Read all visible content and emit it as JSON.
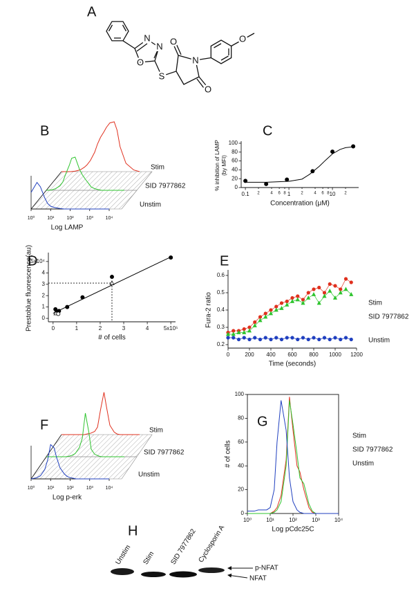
{
  "structure": {
    "panel": "A",
    "atoms": [
      "N",
      "N",
      "O",
      "S",
      "O",
      "N",
      "O",
      "O"
    ]
  },
  "chart_data": [
    {
      "panel": "B",
      "type": "ridge",
      "xlabel": "Log LAMP",
      "xscale": "log",
      "xlim": [
        1,
        10000
      ],
      "xticks": [
        {
          "value": 1,
          "label": "10⁰"
        },
        {
          "value": 10,
          "label": "10¹"
        },
        {
          "value": 100,
          "label": "10²"
        },
        {
          "value": 1000,
          "label": "10³"
        },
        {
          "value": 10000,
          "label": "10⁴"
        }
      ],
      "ylim": [
        0,
        100
      ],
      "x": [
        1,
        2,
        3,
        5,
        7,
        10,
        15,
        20,
        30,
        50,
        70,
        100,
        150,
        200,
        300,
        500,
        700,
        1000,
        2000,
        5000,
        10000
      ],
      "series": [
        {
          "name": "Stim",
          "color": "#e0301e",
          "values": [
            0,
            0,
            0,
            1,
            2,
            4,
            8,
            12,
            20,
            35,
            50,
            62,
            72,
            80,
            88,
            90,
            75,
            45,
            15,
            3,
            0
          ]
        },
        {
          "name": "SID 7977862",
          "color": "#2ec42e",
          "values": [
            0,
            1,
            3,
            8,
            15,
            30,
            45,
            58,
            60,
            38,
            28,
            20,
            12,
            6,
            3,
            1,
            0,
            0,
            0,
            0,
            0
          ]
        },
        {
          "name": "Unstim",
          "color": "#1f3fbf",
          "values": [
            30,
            48,
            40,
            20,
            10,
            5,
            3,
            2,
            1,
            0,
            0,
            0,
            0,
            0,
            0,
            0,
            0,
            0,
            0,
            0,
            0
          ]
        }
      ]
    },
    {
      "panel": "C",
      "type": "scatter",
      "ylabel": [
        "% inhibition of LAMP",
        "(by MFI)"
      ],
      "xlabel": "Concentration (μM)",
      "xscale": "log",
      "xlim": [
        0.08,
        40
      ],
      "xticks": [
        0.1,
        {
          "value": 0.2,
          "label": "2"
        },
        {
          "value": 0.4,
          "label": "4"
        },
        {
          "value": 0.6,
          "label": "6"
        },
        {
          "value": 0.8,
          "label": "8"
        },
        1,
        {
          "value": 2,
          "label": "2"
        },
        {
          "value": 4,
          "label": "4"
        },
        {
          "value": 6,
          "label": "6"
        },
        {
          "value": 8,
          "label": "8"
        },
        10,
        {
          "value": 20,
          "label": "2"
        }
      ],
      "ylim": [
        0,
        100
      ],
      "yticks": [
        0,
        20,
        40,
        60,
        80,
        100
      ],
      "series": [
        {
          "color": "#000000",
          "marker": "circle",
          "x": [
            0.1,
            0.3,
            0.9,
            3.5,
            10,
            30
          ],
          "values": [
            15,
            8,
            18,
            37,
            81,
            93
          ]
        }
      ],
      "fit": {
        "color": "#000000",
        "x": [
          0.1,
          0.3,
          1,
          2,
          3,
          5,
          7,
          10,
          15,
          20,
          30
        ],
        "values": [
          12,
          12,
          14,
          19,
          30,
          48,
          62,
          76,
          86,
          90,
          92
        ]
      }
    },
    {
      "panel": "D",
      "type": "scatter",
      "xlabel": "# of cells",
      "ylabel": "Prestoblue fluorescence(au)",
      "xlim": [
        -0.2,
        5.2
      ],
      "xticks": [
        0,
        1,
        2,
        3,
        4,
        {
          "value": 5,
          "label": "5x10⁵"
        }
      ],
      "ylim": [
        -0.3,
        5.6
      ],
      "yticks": [
        0,
        1,
        2,
        3,
        4,
        {
          "value": 5,
          "label": "5x10⁴"
        }
      ],
      "series": [
        {
          "color": "#000000",
          "marker": "circle",
          "x": [
            0.1,
            0.15,
            0.25,
            0.6,
            1.25,
            2.5,
            5
          ],
          "values": [
            0.8,
            0.55,
            0.65,
            1.0,
            1.85,
            3.65,
            5.35
          ]
        },
        {
          "color": "#000000",
          "marker": "open-triangle",
          "x": [
            0.12,
            2.5
          ],
          "values": [
            0.45,
            3.1
          ]
        },
        {
          "color": "#000000",
          "marker": "open-circle",
          "x": [
            0.22
          ],
          "values": [
            0.4
          ]
        }
      ],
      "fit": {
        "color": "#000000",
        "x": [
          0,
          5
        ],
        "values": [
          0.45,
          5.4
        ]
      },
      "guides": {
        "x": 2.5,
        "y": 3.1
      }
    },
    {
      "panel": "E",
      "type": "line",
      "markers": true,
      "xlabel": "Time (seconds)",
      "ylabel": "Fura-2 ratio",
      "xlim": [
        0,
        1200
      ],
      "xticks": [
        0,
        200,
        400,
        600,
        800,
        1000,
        1200
      ],
      "ylim": [
        0.18,
        0.62
      ],
      "yticks": [
        0.2,
        0.3,
        0.4,
        0.5,
        0.6
      ],
      "x": [
        0,
        50,
        100,
        150,
        200,
        250,
        300,
        350,
        400,
        450,
        500,
        550,
        600,
        650,
        700,
        750,
        800,
        850,
        900,
        950,
        1000,
        1050,
        1100,
        1150
      ],
      "series": [
        {
          "name": "Stim",
          "color": "#e0301e",
          "marker": "circle",
          "values": [
            0.27,
            0.28,
            0.28,
            0.29,
            0.3,
            0.33,
            0.36,
            0.38,
            0.4,
            0.42,
            0.44,
            0.45,
            0.47,
            0.48,
            0.46,
            0.5,
            0.52,
            0.53,
            0.5,
            0.55,
            0.54,
            0.52,
            0.58,
            0.56
          ]
        },
        {
          "name": "SID 7977862",
          "color": "#2ec42e",
          "marker": "triangle",
          "values": [
            0.26,
            0.26,
            0.27,
            0.27,
            0.28,
            0.31,
            0.34,
            0.36,
            0.38,
            0.4,
            0.41,
            0.43,
            0.45,
            0.46,
            0.44,
            0.47,
            0.49,
            0.44,
            0.48,
            0.51,
            0.47,
            0.5,
            0.52,
            0.49
          ]
        },
        {
          "name": "Unstim",
          "color": "#1f3fbf",
          "marker": "circle",
          "values": [
            0.24,
            0.24,
            0.23,
            0.24,
            0.23,
            0.24,
            0.23,
            0.24,
            0.23,
            0.24,
            0.23,
            0.24,
            0.24,
            0.23,
            0.24,
            0.23,
            0.24,
            0.23,
            0.24,
            0.23,
            0.24,
            0.23,
            0.24,
            0.23
          ]
        }
      ]
    },
    {
      "panel": "F",
      "type": "ridge",
      "xlabel": "Log p-erk",
      "xscale": "log",
      "xlim": [
        1,
        10000
      ],
      "xticks": [
        {
          "value": 1,
          "label": "10⁰"
        },
        {
          "value": 10,
          "label": "10¹"
        },
        {
          "value": 100,
          "label": "10²"
        },
        {
          "value": 1000,
          "label": "10³"
        },
        {
          "value": 10000,
          "label": "10⁴"
        }
      ],
      "ylim": [
        0,
        100
      ],
      "x": [
        1,
        2,
        3,
        5,
        7,
        10,
        15,
        20,
        30,
        50,
        70,
        100,
        150,
        200,
        300,
        500,
        700,
        1000,
        2000,
        5000,
        10000
      ],
      "series": [
        {
          "name": "Stim",
          "color": "#e0301e",
          "values": [
            0,
            0,
            0,
            0,
            0,
            0,
            0,
            1,
            2,
            5,
            12,
            40,
            68,
            45,
            15,
            4,
            1,
            0,
            0,
            0,
            0
          ]
        },
        {
          "name": "SID 7977862",
          "color": "#2ec42e",
          "values": [
            0,
            0,
            0,
            0,
            0,
            0,
            1,
            2,
            5,
            15,
            30,
            70,
            40,
            12,
            4,
            1,
            0,
            0,
            0,
            0,
            0
          ]
        },
        {
          "name": "Unstim",
          "color": "#1f3fbf",
          "values": [
            0,
            2,
            5,
            15,
            30,
            55,
            50,
            35,
            18,
            8,
            4,
            2,
            1,
            0,
            0,
            0,
            0,
            0,
            0,
            0,
            0
          ]
        }
      ]
    },
    {
      "panel": "G",
      "type": "line",
      "xlabel": "Log pCdc25C",
      "ylabel": "# of cells",
      "xscale": "log",
      "xlim": [
        1,
        10000
      ],
      "xticks": [
        {
          "value": 1,
          "label": "10⁰"
        },
        {
          "value": 10,
          "label": "10¹"
        },
        {
          "value": 100,
          "label": "10²"
        },
        {
          "value": 1000,
          "label": "10³"
        },
        {
          "value": 10000,
          "label": "10⁴"
        }
      ],
      "ylim": [
        0,
        100
      ],
      "yticks": [
        0,
        20,
        40,
        60,
        80,
        100
      ],
      "x": [
        1,
        2,
        3,
        5,
        7,
        10,
        15,
        20,
        30,
        50,
        70,
        100,
        150,
        200,
        300,
        500,
        700,
        1000,
        2000,
        5000,
        10000
      ],
      "series": [
        {
          "name": "Stim",
          "color": "#e0301e",
          "values": [
            0,
            0,
            0,
            0,
            0,
            0,
            2,
            5,
            15,
            45,
            98,
            70,
            40,
            35,
            20,
            5,
            1,
            0,
            0,
            0,
            0
          ]
        },
        {
          "name": "SID 7977862",
          "color": "#2ec42e",
          "values": [
            0,
            0,
            0,
            0,
            0,
            0,
            1,
            3,
            10,
            40,
            95,
            75,
            50,
            30,
            25,
            8,
            2,
            0,
            0,
            0,
            0
          ]
        },
        {
          "name": "Unstim",
          "color": "#1f3fbf",
          "values": [
            2,
            2,
            3,
            3,
            3,
            5,
            20,
            60,
            95,
            70,
            30,
            10,
            3,
            1,
            0,
            0,
            0,
            0,
            0,
            0,
            0
          ]
        }
      ]
    }
  ],
  "blot": {
    "panel": "H",
    "lanes": [
      "Unstim",
      "Stim",
      "SID 7977862",
      "Cyclosporin A"
    ],
    "bands": [
      "p-NFAT",
      "NFAT"
    ]
  }
}
